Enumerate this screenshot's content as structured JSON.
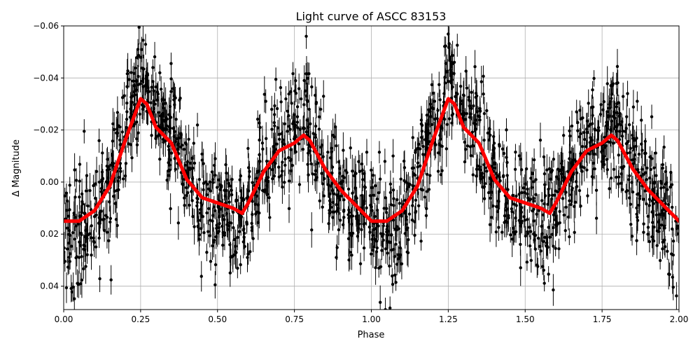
{
  "chart_data": {
    "type": "scatter",
    "title": "Light curve of ASCC 83153",
    "xlabel": "Phase",
    "ylabel": "Δ Magnitude",
    "xlim": [
      0,
      2
    ],
    "ylim": [
      0.049,
      -0.06
    ],
    "y_inverted": true,
    "grid": true,
    "xticks": [
      "0.00",
      "0.25",
      "0.50",
      "0.75",
      "1.00",
      "1.25",
      "1.50",
      "1.75",
      "2.00"
    ],
    "xtick_values": [
      0,
      0.25,
      0.5,
      0.75,
      1,
      1.25,
      1.5,
      1.75,
      2
    ],
    "yticks": [
      "−0.06",
      "−0.04",
      "−0.02",
      "0.00",
      "0.02",
      "0.04"
    ],
    "ytick_values": [
      -0.06,
      -0.04,
      -0.02,
      0,
      0.02,
      0.04
    ],
    "points_color": "#000000",
    "binned_curve": {
      "color": "#ff0000",
      "x": [
        0,
        0.05,
        0.1,
        0.15,
        0.2,
        0.25,
        0.27,
        0.3,
        0.35,
        0.4,
        0.45,
        0.5,
        0.55,
        0.58,
        0.6,
        0.65,
        0.7,
        0.75,
        0.78,
        0.8,
        0.85,
        0.9,
        0.95,
        1.0,
        1.05,
        1.1,
        1.15,
        1.2,
        1.25,
        1.27,
        1.3,
        1.35,
        1.4,
        1.45,
        1.5,
        1.55,
        1.58,
        1.6,
        1.65,
        1.7,
        1.75,
        1.78,
        1.8,
        1.85,
        1.9,
        1.95,
        2.0
      ],
      "y": [
        0.015,
        0.015,
        0.011,
        0.0015,
        -0.016,
        -0.032,
        -0.03,
        -0.021,
        -0.015,
        -0.001,
        0.006,
        0.008,
        0.01,
        0.012,
        0.008,
        -0.004,
        -0.012,
        -0.015,
        -0.018,
        -0.016,
        -0.005,
        0.003,
        0.009,
        0.015,
        0.015,
        0.011,
        0.0015,
        -0.016,
        -0.032,
        -0.03,
        -0.021,
        -0.015,
        -0.001,
        0.006,
        0.008,
        0.01,
        0.012,
        0.008,
        -0.004,
        -0.012,
        -0.015,
        -0.018,
        -0.016,
        -0.005,
        0.003,
        0.009,
        0.015
      ]
    }
  }
}
